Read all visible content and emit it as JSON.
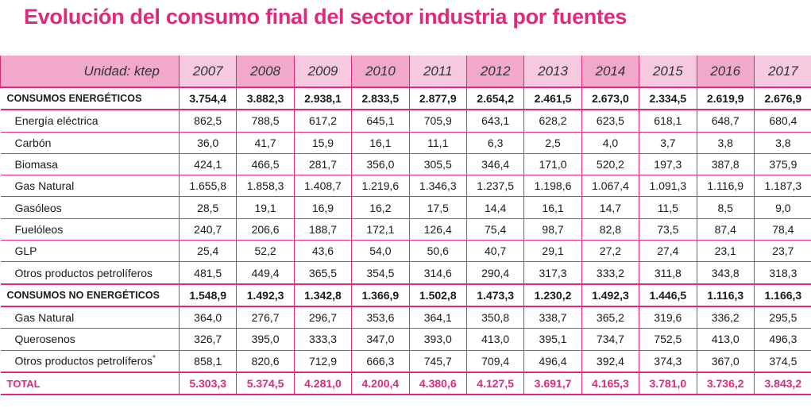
{
  "title": "Evolución del consumo final del sector industria por fuentes",
  "table": {
    "unit_label": "Unidad: ktep",
    "years": [
      "2007",
      "2008",
      "2009",
      "2010",
      "2011",
      "2012",
      "2013",
      "2014",
      "2015",
      "2016",
      "2017"
    ],
    "rows": [
      {
        "label": "CONSUMOS ENERGÉTICOS",
        "type": "group",
        "values": [
          "3.754,4",
          "3.882,3",
          "2.938,1",
          "2.833,5",
          "2.877,9",
          "2.654,2",
          "2.461,5",
          "2.673,0",
          "2.334,5",
          "2.619,9",
          "2.676,9"
        ]
      },
      {
        "label": "Energía eléctrica",
        "type": "item",
        "values": [
          "862,5",
          "788,5",
          "617,2",
          "645,1",
          "705,9",
          "643,1",
          "628,2",
          "623,5",
          "618,1",
          "648,7",
          "680,4"
        ]
      },
      {
        "label": "Carbón",
        "type": "item",
        "values": [
          "36,0",
          "41,7",
          "15,9",
          "16,1",
          "11,1",
          "6,3",
          "2,5",
          "4,0",
          "3,7",
          "3,8",
          "3,8"
        ]
      },
      {
        "label": "Biomasa",
        "type": "item",
        "values": [
          "424,1",
          "466,5",
          "281,7",
          "356,0",
          "305,5",
          "346,4",
          "171,0",
          "520,2",
          "197,3",
          "387,8",
          "375,9"
        ]
      },
      {
        "label": "Gas Natural",
        "type": "item",
        "values": [
          "1.655,8",
          "1.858,3",
          "1.408,7",
          "1.219,6",
          "1.346,3",
          "1.237,5",
          "1.198,6",
          "1.067,4",
          "1.091,3",
          "1.116,9",
          "1.187,3"
        ]
      },
      {
        "label": "Gasóleos",
        "type": "item",
        "values": [
          "28,5",
          "19,1",
          "16,9",
          "16,2",
          "17,5",
          "14,4",
          "16,1",
          "14,7",
          "11,5",
          "8,5",
          "9,0"
        ]
      },
      {
        "label": "Fuelóleos",
        "type": "item",
        "values": [
          "240,7",
          "206,6",
          "188,7",
          "172,1",
          "126,4",
          "75,4",
          "98,7",
          "82,8",
          "73,5",
          "87,4",
          "78,4"
        ]
      },
      {
        "label": "GLP",
        "type": "item",
        "values": [
          "25,4",
          "52,2",
          "43,6",
          "54,0",
          "50,6",
          "40,7",
          "29,1",
          "27,2",
          "27,4",
          "23,1",
          "23,7"
        ]
      },
      {
        "label": "Otros productos petrolíferos",
        "type": "item",
        "values": [
          "481,5",
          "449,4",
          "365,5",
          "354,5",
          "314,6",
          "290,4",
          "317,3",
          "333,2",
          "311,8",
          "343,8",
          "318,3"
        ]
      },
      {
        "label": "CONSUMOS NO ENERGÉTICOS",
        "type": "group",
        "values": [
          "1.548,9",
          "1.492,3",
          "1.342,8",
          "1.366,9",
          "1.502,8",
          "1.473,3",
          "1.230,2",
          "1.492,3",
          "1.446,5",
          "1.116,3",
          "1.166,3"
        ]
      },
      {
        "label": "Gas Natural",
        "type": "item",
        "values": [
          "364,0",
          "276,7",
          "296,7",
          "353,6",
          "364,1",
          "350,8",
          "338,7",
          "365,2",
          "319,6",
          "336,2",
          "295,5"
        ]
      },
      {
        "label": "Querosenos",
        "type": "item",
        "values": [
          "326,7",
          "395,0",
          "333,3",
          "347,0",
          "393,0",
          "413,0",
          "395,1",
          "734,7",
          "752,5",
          "413,0",
          "496,3"
        ]
      },
      {
        "label": "Otros productos petrolíferos",
        "footnote": "*",
        "type": "item",
        "values": [
          "858,1",
          "820,6",
          "712,9",
          "666,3",
          "745,7",
          "709,4",
          "496,4",
          "392,4",
          "374,3",
          "367,0",
          "374,5"
        ]
      },
      {
        "label": "TOTAL",
        "type": "total",
        "values": [
          "5.303,3",
          "5.374,5",
          "4.281,0",
          "4.200,4",
          "4.380,6",
          "4.127,5",
          "3.691,7",
          "4.165,3",
          "3.781,0",
          "3.736,2",
          "3.843,2"
        ]
      }
    ]
  },
  "colors": {
    "accent": "#e0287f",
    "header_dark": "#f1a8cb",
    "header_light": "#f6c9df"
  }
}
